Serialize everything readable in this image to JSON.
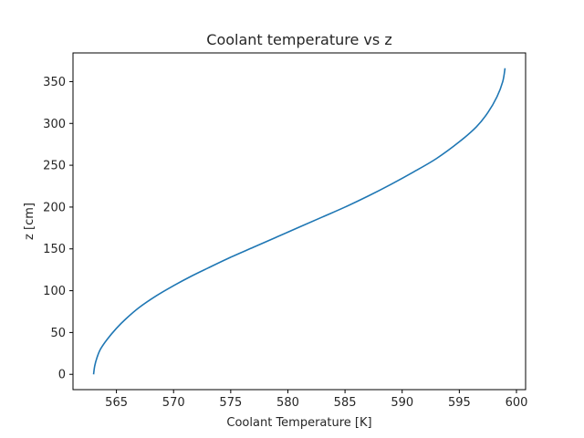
{
  "chart_data": {
    "type": "line",
    "title": "Coolant temperature vs z",
    "xlabel": "Coolant Temperature [K]",
    "ylabel": "z [cm]",
    "xlim": [
      561.2,
      600.8
    ],
    "ylim": [
      -18.3,
      384.3
    ],
    "xticks": [
      565,
      570,
      575,
      580,
      585,
      590,
      595,
      600
    ],
    "yticks": [
      0,
      50,
      100,
      150,
      200,
      250,
      300,
      350
    ],
    "grid": false,
    "series": [
      {
        "name": "",
        "color": "#1f77b4",
        "x": [
          563.0,
          563.1,
          563.3,
          563.6,
          564.2,
          565.0,
          565.8,
          567.0,
          568.5,
          570.0,
          571.5,
          573.0,
          575.0,
          577.0,
          579.0,
          581.0,
          583.0,
          585.0,
          587.0,
          589.0,
          591.0,
          593.0,
          595.0,
          596.5,
          597.5,
          598.3,
          598.8,
          599.0
        ],
        "y": [
          0,
          10,
          20,
          30,
          42,
          55,
          66,
          80,
          94,
          106,
          117,
          127,
          140,
          152,
          164,
          176,
          188,
          200,
          213,
          227,
          242,
          258,
          278,
          296,
          313,
          332,
          350,
          366
        ]
      }
    ]
  }
}
